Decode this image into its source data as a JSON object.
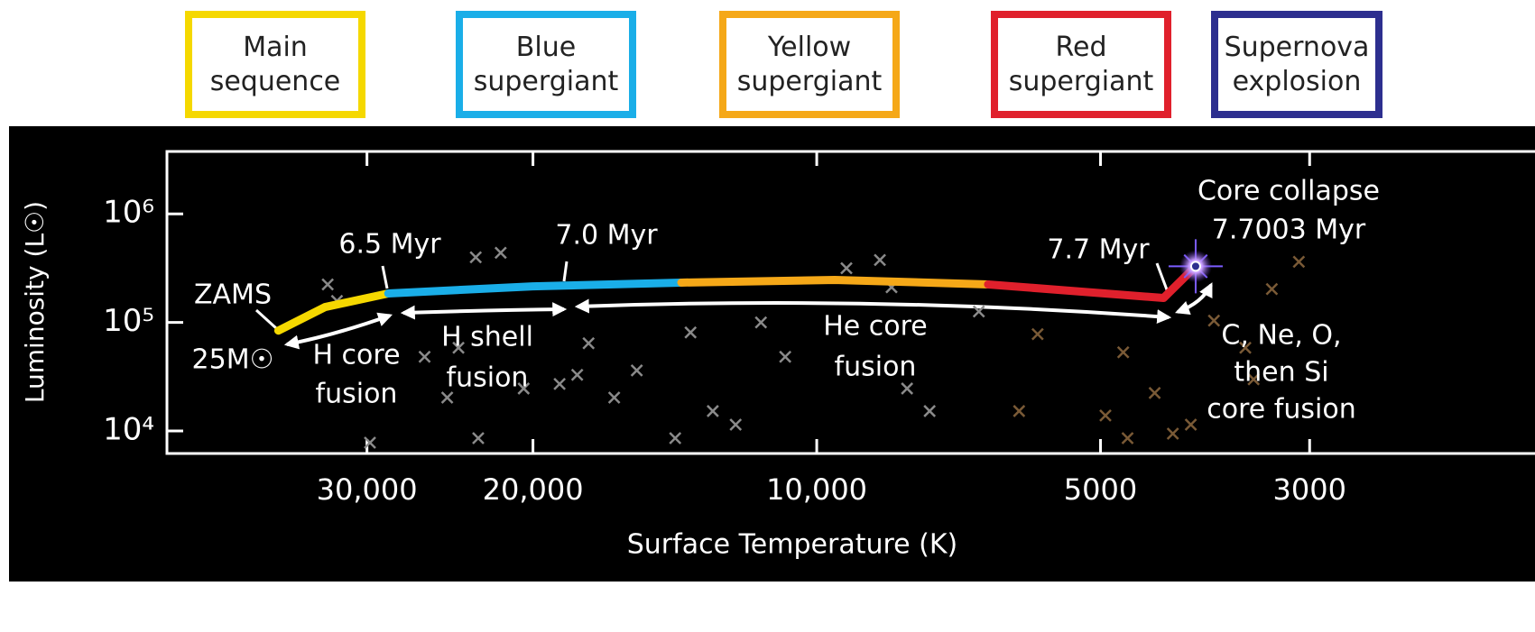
{
  "chart_data": {
    "type": "line",
    "xlabel": "Surface Temperature (K)",
    "ylabel": "Luminosity (L☉)",
    "xscale": "log",
    "yscale": "log",
    "xlim": [
      48900,
      1730
    ],
    "ylim": [
      6200,
      3760000
    ],
    "xticks": [
      {
        "value": 30000,
        "label": "30,000"
      },
      {
        "value": 20000,
        "label": "20,000"
      },
      {
        "value": 10000,
        "label": "10,000"
      },
      5000,
      3000
    ],
    "yticks": [
      {
        "value": 10000,
        "label": "10⁴"
      },
      {
        "value": 100000,
        "label": "10⁵"
      },
      {
        "value": 1000000,
        "label": "10⁶"
      }
    ],
    "series": [
      {
        "name": "Main sequence",
        "color": "#f5d800",
        "x": [
          37250,
          33230,
          28480
        ],
        "values": [
          84000,
          138600,
          185000
        ]
      },
      {
        "name": "Blue supergiant",
        "color": "#1aaee8",
        "x": [
          28480,
          20010,
          13920
        ],
        "values": [
          185000,
          215000,
          232800
        ]
      },
      {
        "name": "Yellow supergiant",
        "color": "#f5a818",
        "x": [
          13920,
          9570,
          6580
        ],
        "values": [
          232800,
          246400,
          224000
        ]
      },
      {
        "name": "Red supergiant",
        "color": "#e0202c",
        "x": [
          6580,
          4286,
          3963
        ],
        "values": [
          224000,
          168000,
          329000
        ]
      },
      {
        "name": "Supernova explosion",
        "color": "#2d2f8f",
        "x": [
          3963
        ],
        "values": [
          329000
        ]
      }
    ],
    "stars": [
      {
        "color": "#8a8a8a",
        "x": [
          33020,
          32280,
          26060,
          23000,
          21640,
          23990,
          24660,
          22860,
          20460,
          17950,
          17460,
          15520,
          14130,
          13610,
          12890,
          12190,
          11460,
          10800,
          9300,
          8570,
          8330,
          7590,
          6730,
          8020,
          29780,
          18740,
          16400
        ],
        "values": [
          224000,
          158000,
          48200,
          398000,
          438000,
          58400,
          20300,
          8580,
          24600,
          32900,
          64300,
          36100,
          8580,
          80900,
          15250,
          11430,
          100000,
          48200,
          316000,
          376000,
          211000,
          15250,
          126000,
          24600,
          7800,
          27100,
          20300
        ]
      },
      {
        "color": "#7a5a36",
        "x": [
          6100,
          5830,
          4940,
          4680,
          4380,
          4190,
          3790,
          3510,
          3290,
          3080,
          3440,
          4010,
          4730
        ],
        "values": [
          15250,
          78000,
          13870,
          8580,
          22400,
          9440,
          104000,
          58400,
          203000,
          362000,
          29900,
          11430,
          53100
        ]
      }
    ],
    "annotations": [
      {
        "text": [
          "ZAMS"
        ]
      },
      {
        "text": [
          "25M☉"
        ]
      },
      {
        "text": [
          "6.5 Myr"
        ]
      },
      {
        "text": [
          "7.0 Myr"
        ]
      },
      {
        "text": [
          "7.7 Myr"
        ]
      },
      {
        "text": [
          "Core collapse",
          "7.7003 Myr"
        ]
      },
      {
        "text": [
          "H core",
          "fusion"
        ]
      },
      {
        "text": [
          "H shell",
          "fusion"
        ]
      },
      {
        "text": [
          "He core",
          "fusion"
        ]
      },
      {
        "text": [
          "C, Ne, O,",
          "then Si",
          "core fusion"
        ]
      }
    ]
  }
}
